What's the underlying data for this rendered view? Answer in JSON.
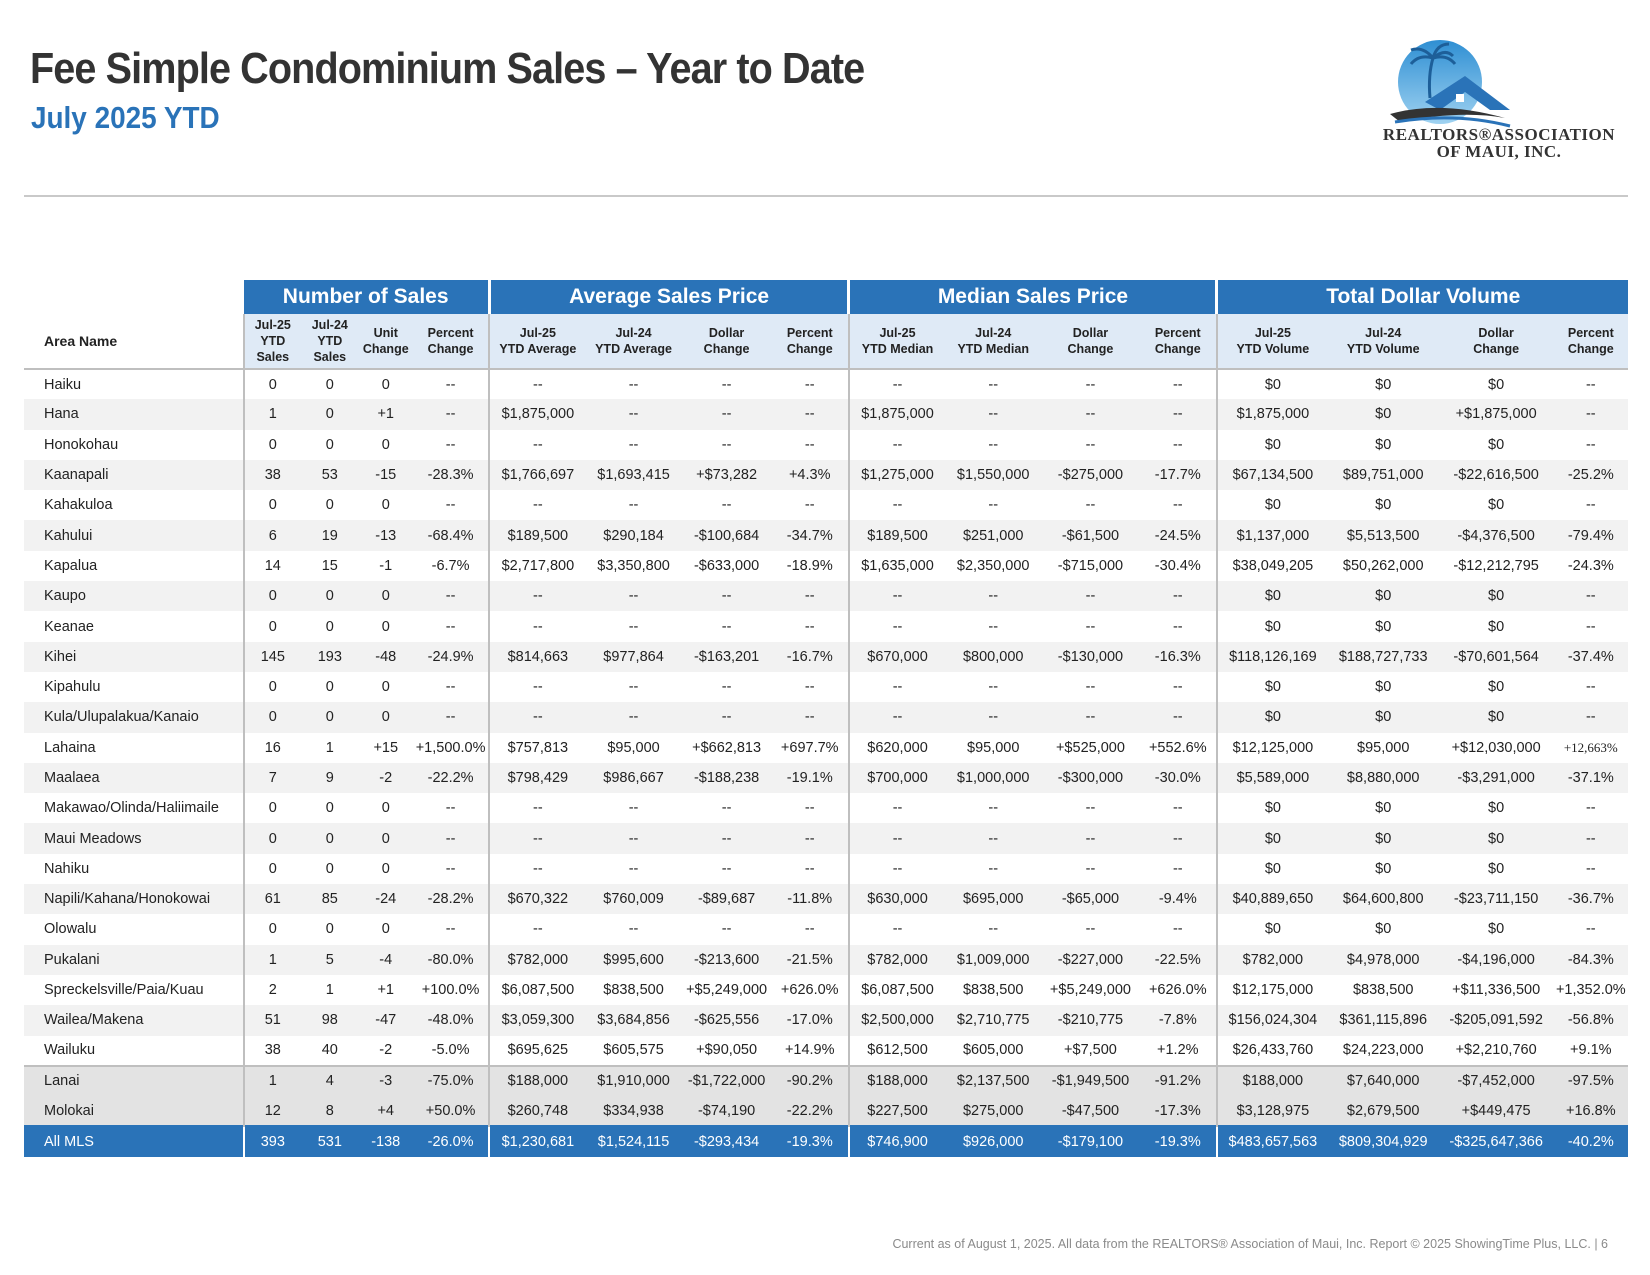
{
  "header": {
    "title": "Fee Simple Condominium Sales – Year to Date",
    "subtitle": "July 2025 YTD"
  },
  "logo": {
    "line1": "REALTORS®ASSOCIATION",
    "line2": "OF MAUI, INC.",
    "colors": {
      "sky": "#3aa0dc",
      "roof": "#2a73b8",
      "wave": "#333333"
    }
  },
  "table": {
    "groups": [
      "Number of Sales",
      "Average Sales Price",
      "Median Sales Price",
      "Total Dollar Volume"
    ],
    "area_header": "Area Name",
    "columns": [
      [
        "Jul-25",
        "YTD",
        "Sales"
      ],
      [
        "Jul-24",
        "YTD",
        "Sales"
      ],
      [
        "Unit",
        "Change"
      ],
      [
        "Percent",
        "Change"
      ],
      [
        "Jul-25",
        "YTD Average"
      ],
      [
        "Jul-24",
        "YTD Average"
      ],
      [
        "Dollar",
        "Change"
      ],
      [
        "Percent",
        "Change"
      ],
      [
        "Jul-25",
        "YTD Median"
      ],
      [
        "Jul-24",
        "YTD Median"
      ],
      [
        "Dollar",
        "Change"
      ],
      [
        "Percent",
        "Change"
      ],
      [
        "Jul-25",
        "YTD Volume"
      ],
      [
        "Jul-24",
        "YTD Volume"
      ],
      [
        "Dollar",
        "Change"
      ],
      [
        "Percent",
        "Change"
      ]
    ],
    "rows": [
      [
        "Haiku",
        "0",
        "0",
        "0",
        "--",
        "--",
        "--",
        "--",
        "--",
        "--",
        "--",
        "--",
        "--",
        "$0",
        "$0",
        "$0",
        "--"
      ],
      [
        "Hana",
        "1",
        "0",
        "+1",
        "--",
        "$1,875,000",
        "--",
        "--",
        "--",
        "$1,875,000",
        "--",
        "--",
        "--",
        "$1,875,000",
        "$0",
        "+$1,875,000",
        "--"
      ],
      [
        "Honokohau",
        "0",
        "0",
        "0",
        "--",
        "--",
        "--",
        "--",
        "--",
        "--",
        "--",
        "--",
        "--",
        "$0",
        "$0",
        "$0",
        "--"
      ],
      [
        "Kaanapali",
        "38",
        "53",
        "-15",
        "-28.3%",
        "$1,766,697",
        "$1,693,415",
        "+$73,282",
        "+4.3%",
        "$1,275,000",
        "$1,550,000",
        "-$275,000",
        "-17.7%",
        "$67,134,500",
        "$89,751,000",
        "-$22,616,500",
        "-25.2%"
      ],
      [
        "Kahakuloa",
        "0",
        "0",
        "0",
        "--",
        "--",
        "--",
        "--",
        "--",
        "--",
        "--",
        "--",
        "--",
        "$0",
        "$0",
        "$0",
        "--"
      ],
      [
        "Kahului",
        "6",
        "19",
        "-13",
        "-68.4%",
        "$189,500",
        "$290,184",
        "-$100,684",
        "-34.7%",
        "$189,500",
        "$251,000",
        "-$61,500",
        "-24.5%",
        "$1,137,000",
        "$5,513,500",
        "-$4,376,500",
        "-79.4%"
      ],
      [
        "Kapalua",
        "14",
        "15",
        "-1",
        "-6.7%",
        "$2,717,800",
        "$3,350,800",
        "-$633,000",
        "-18.9%",
        "$1,635,000",
        "$2,350,000",
        "-$715,000",
        "-30.4%",
        "$38,049,205",
        "$50,262,000",
        "-$12,212,795",
        "-24.3%"
      ],
      [
        "Kaupo",
        "0",
        "0",
        "0",
        "--",
        "--",
        "--",
        "--",
        "--",
        "--",
        "--",
        "--",
        "--",
        "$0",
        "$0",
        "$0",
        "--"
      ],
      [
        "Keanae",
        "0",
        "0",
        "0",
        "--",
        "--",
        "--",
        "--",
        "--",
        "--",
        "--",
        "--",
        "--",
        "$0",
        "$0",
        "$0",
        "--"
      ],
      [
        "Kihei",
        "145",
        "193",
        "-48",
        "-24.9%",
        "$814,663",
        "$977,864",
        "-$163,201",
        "-16.7%",
        "$670,000",
        "$800,000",
        "-$130,000",
        "-16.3%",
        "$118,126,169",
        "$188,727,733",
        "-$70,601,564",
        "-37.4%"
      ],
      [
        "Kipahulu",
        "0",
        "0",
        "0",
        "--",
        "--",
        "--",
        "--",
        "--",
        "--",
        "--",
        "--",
        "--",
        "$0",
        "$0",
        "$0",
        "--"
      ],
      [
        "Kula/Ulupalakua/Kanaio",
        "0",
        "0",
        "0",
        "--",
        "--",
        "--",
        "--",
        "--",
        "--",
        "--",
        "--",
        "--",
        "$0",
        "$0",
        "$0",
        "--"
      ],
      [
        "Lahaina",
        "16",
        "1",
        "+15",
        "+1,500.0%",
        "$757,813",
        "$95,000",
        "+$662,813",
        "+697.7%",
        "$620,000",
        "$95,000",
        "+$525,000",
        "+552.6%",
        "$12,125,000",
        "$95,000",
        "+$12,030,000",
        "+12,663%"
      ],
      [
        "Maalaea",
        "7",
        "9",
        "-2",
        "-22.2%",
        "$798,429",
        "$986,667",
        "-$188,238",
        "-19.1%",
        "$700,000",
        "$1,000,000",
        "-$300,000",
        "-30.0%",
        "$5,589,000",
        "$8,880,000",
        "-$3,291,000",
        "-37.1%"
      ],
      [
        "Makawao/Olinda/Haliimaile",
        "0",
        "0",
        "0",
        "--",
        "--",
        "--",
        "--",
        "--",
        "--",
        "--",
        "--",
        "--",
        "$0",
        "$0",
        "$0",
        "--"
      ],
      [
        "Maui Meadows",
        "0",
        "0",
        "0",
        "--",
        "--",
        "--",
        "--",
        "--",
        "--",
        "--",
        "--",
        "--",
        "$0",
        "$0",
        "$0",
        "--"
      ],
      [
        "Nahiku",
        "0",
        "0",
        "0",
        "--",
        "--",
        "--",
        "--",
        "--",
        "--",
        "--",
        "--",
        "--",
        "$0",
        "$0",
        "$0",
        "--"
      ],
      [
        "Napili/Kahana/Honokowai",
        "61",
        "85",
        "-24",
        "-28.2%",
        "$670,322",
        "$760,009",
        "-$89,687",
        "-11.8%",
        "$630,000",
        "$695,000",
        "-$65,000",
        "-9.4%",
        "$40,889,650",
        "$64,600,800",
        "-$23,711,150",
        "-36.7%"
      ],
      [
        "Olowalu",
        "0",
        "0",
        "0",
        "--",
        "--",
        "--",
        "--",
        "--",
        "--",
        "--",
        "--",
        "--",
        "$0",
        "$0",
        "$0",
        "--"
      ],
      [
        "Pukalani",
        "1",
        "5",
        "-4",
        "-80.0%",
        "$782,000",
        "$995,600",
        "-$213,600",
        "-21.5%",
        "$782,000",
        "$1,009,000",
        "-$227,000",
        "-22.5%",
        "$782,000",
        "$4,978,000",
        "-$4,196,000",
        "-84.3%"
      ],
      [
        "Spreckelsville/Paia/Kuau",
        "2",
        "1",
        "+1",
        "+100.0%",
        "$6,087,500",
        "$838,500",
        "+$5,249,000",
        "+626.0%",
        "$6,087,500",
        "$838,500",
        "+$5,249,000",
        "+626.0%",
        "$12,175,000",
        "$838,500",
        "+$11,336,500",
        "+1,352.0%"
      ],
      [
        "Wailea/Makena",
        "51",
        "98",
        "-47",
        "-48.0%",
        "$3,059,300",
        "$3,684,856",
        "-$625,556",
        "-17.0%",
        "$2,500,000",
        "$2,710,775",
        "-$210,775",
        "-7.8%",
        "$156,024,304",
        "$361,115,896",
        "-$205,091,592",
        "-56.8%"
      ],
      [
        "Wailuku",
        "38",
        "40",
        "-2",
        "-5.0%",
        "$695,625",
        "$605,575",
        "+$90,050",
        "+14.9%",
        "$612,500",
        "$605,000",
        "+$7,500",
        "+1.2%",
        "$26,433,760",
        "$24,223,000",
        "+$2,210,760",
        "+9.1%"
      ]
    ],
    "island_rows": [
      [
        "Lanai",
        "1",
        "4",
        "-3",
        "-75.0%",
        "$188,000",
        "$1,910,000",
        "-$1,722,000",
        "-90.2%",
        "$188,000",
        "$2,137,500",
        "-$1,949,500",
        "-91.2%",
        "$188,000",
        "$7,640,000",
        "-$7,452,000",
        "-97.5%"
      ],
      [
        "Molokai",
        "12",
        "8",
        "+4",
        "+50.0%",
        "$260,748",
        "$334,938",
        "-$74,190",
        "-22.2%",
        "$227,500",
        "$275,000",
        "-$47,500",
        "-17.3%",
        "$3,128,975",
        "$2,679,500",
        "+$449,475",
        "+16.8%"
      ]
    ],
    "total_row": [
      "All MLS",
      "393",
      "531",
      "-138",
      "-26.0%",
      "$1,230,681",
      "$1,524,115",
      "-$293,434",
      "-19.3%",
      "$746,900",
      "$926,000",
      "-$179,100",
      "-19.3%",
      "$483,657,563",
      "$809,304,929",
      "-$325,647,366",
      "-40.2%"
    ]
  },
  "footer": {
    "text": "Current as of August 1, 2025. All data from the REALTORS® Association of Maui, Inc. Report © 2025 ShowingTime Plus, LLC.  |  6"
  },
  "colors": {
    "brand_blue": "#2a73b8",
    "header_light": "#dfeaf6",
    "row_alt": "#f2f2f2",
    "island_bg": "#e3e3e3"
  }
}
